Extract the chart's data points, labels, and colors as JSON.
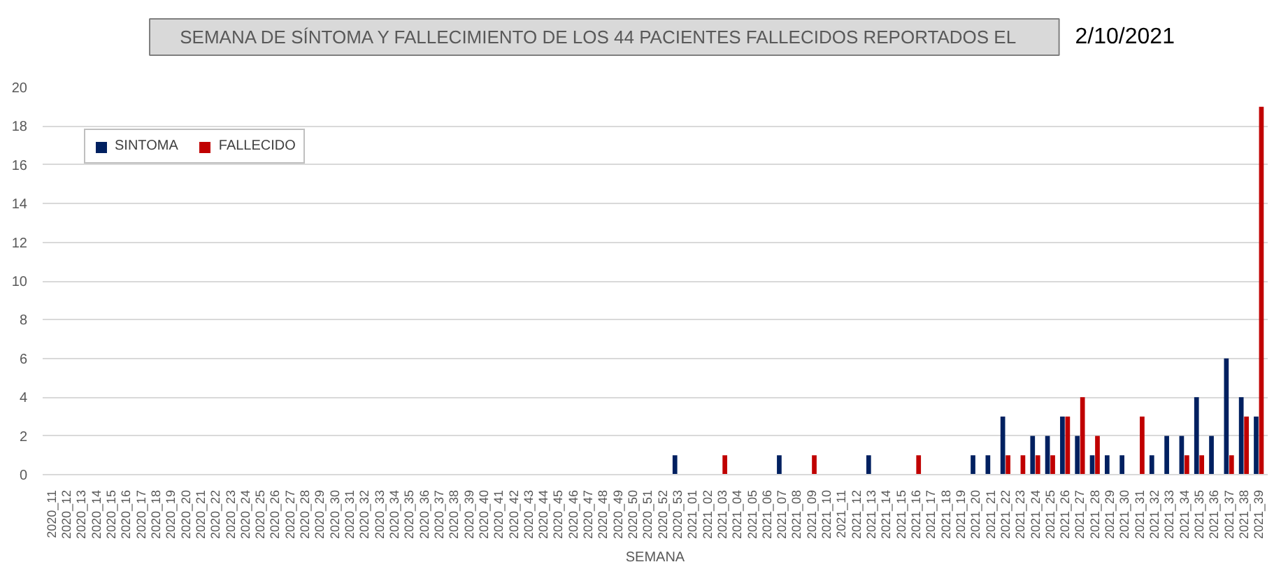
{
  "chart_data": {
    "type": "bar",
    "title": "SEMANA DE SÍNTOMA Y FALLECIMIENTO DE LOS  44  PACIENTES FALLECIDOS REPORTADOS EL",
    "annotations": [
      "2/10/2021"
    ],
    "xlabel": "SEMANA",
    "categories": [
      "2020_11",
      "2020_12",
      "2020_13",
      "2020_14",
      "2020_15",
      "2020_16",
      "2020_17",
      "2020_18",
      "2020_19",
      "2020_20",
      "2020_21",
      "2020_22",
      "2020_23",
      "2020_24",
      "2020_25",
      "2020_26",
      "2020_27",
      "2020_28",
      "2020_29",
      "2020_30",
      "2020_31",
      "2020_32",
      "2020_33",
      "2020_34",
      "2020_35",
      "2020_36",
      "2020_37",
      "2020_38",
      "2020_39",
      "2020_40",
      "2020_41",
      "2020_42",
      "2020_43",
      "2020_44",
      "2020_45",
      "2020_46",
      "2020_47",
      "2020_48",
      "2020_49",
      "2020_50",
      "2020_51",
      "2020_52",
      "2020_53",
      "2021_01",
      "2021_02",
      "2021_03",
      "2021_04",
      "2021_05",
      "2021_06",
      "2021_07",
      "2021_08",
      "2021_09",
      "2021_10",
      "2021_11",
      "2021_12",
      "2021_13",
      "2021_14",
      "2021_15",
      "2021_16",
      "2021_17",
      "2021_18",
      "2021_19",
      "2021_20",
      "2021_21",
      "2021_22",
      "2021_23",
      "2021_24",
      "2021_25",
      "2021_26",
      "2021_27",
      "2021_28",
      "2021_29",
      "2021_30",
      "2021_31",
      "2021_32",
      "2021_33",
      "2021_34",
      "2021_35",
      "2021_36",
      "2021_37",
      "2021_38",
      "2021_39"
    ],
    "series": [
      {
        "name": "SINTOMA",
        "color": "#002060",
        "values": [
          0,
          0,
          0,
          0,
          0,
          0,
          0,
          0,
          0,
          0,
          0,
          0,
          0,
          0,
          0,
          0,
          0,
          0,
          0,
          0,
          0,
          0,
          0,
          0,
          0,
          0,
          0,
          0,
          0,
          0,
          0,
          0,
          0,
          0,
          0,
          0,
          0,
          0,
          0,
          0,
          0,
          0,
          1,
          0,
          0,
          0,
          0,
          0,
          0,
          1,
          0,
          0,
          0,
          0,
          0,
          1,
          0,
          0,
          0,
          0,
          0,
          0,
          1,
          1,
          3,
          0,
          2,
          2,
          3,
          2,
          1,
          1,
          1,
          0,
          1,
          2,
          2,
          4,
          2,
          6,
          4,
          3
        ]
      },
      {
        "name": "FALLECIDO",
        "color": "#c00000",
        "values": [
          0,
          0,
          0,
          0,
          0,
          0,
          0,
          0,
          0,
          0,
          0,
          0,
          0,
          0,
          0,
          0,
          0,
          0,
          0,
          0,
          0,
          0,
          0,
          0,
          0,
          0,
          0,
          0,
          0,
          0,
          0,
          0,
          0,
          0,
          0,
          0,
          0,
          0,
          0,
          0,
          0,
          0,
          0,
          0,
          0,
          1,
          0,
          0,
          0,
          0,
          0,
          1,
          0,
          0,
          0,
          0,
          0,
          0,
          1,
          0,
          0,
          0,
          0,
          0,
          1,
          1,
          1,
          1,
          3,
          4,
          2,
          0,
          0,
          3,
          0,
          0,
          1,
          1,
          0,
          1,
          3,
          19
        ]
      }
    ],
    "ylim": [
      0,
      20
    ],
    "yticks": [
      0,
      2,
      4,
      6,
      8,
      10,
      12,
      14,
      16,
      18,
      20
    ],
    "grid": "y",
    "legend": "top left"
  }
}
